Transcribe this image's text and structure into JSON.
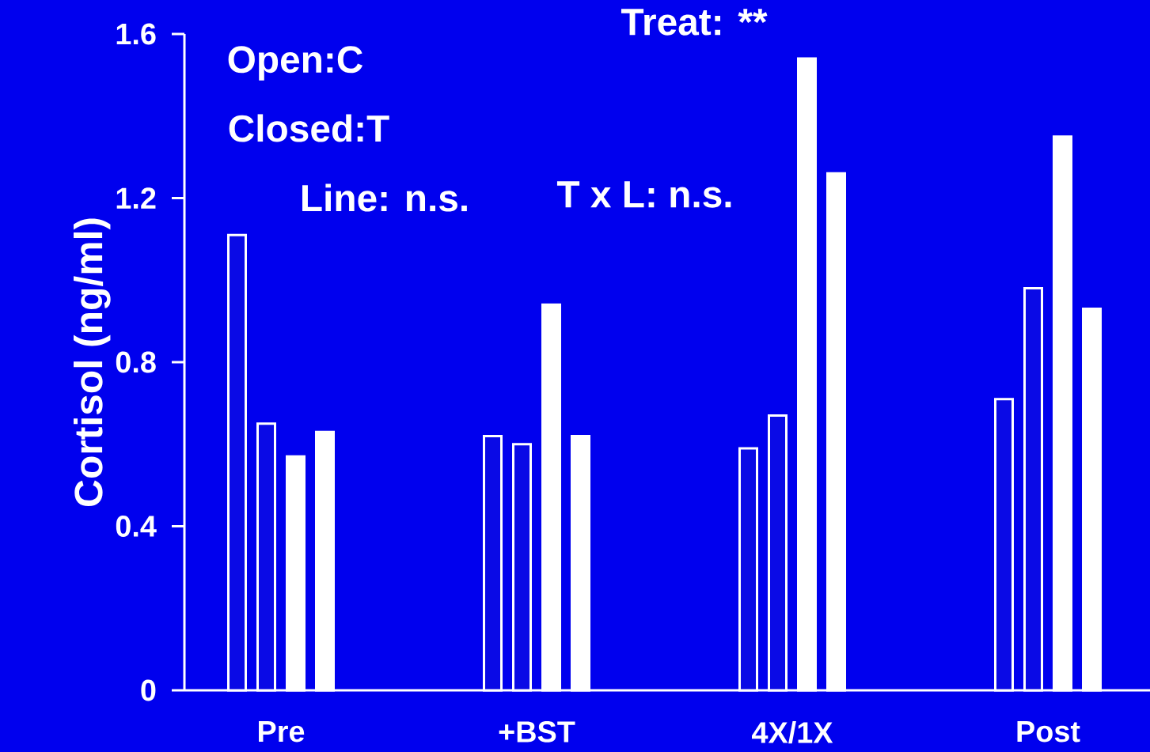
{
  "chart_data": {
    "type": "bar",
    "ylabel": "Cortisol (ng/ml)",
    "categories": [
      "Pre",
      "+BST",
      "4X/1X",
      "Post"
    ],
    "series": [
      {
        "color": "#0a0ae6",
        "values": [
          1.11,
          0.62,
          0.59,
          0.71
        ]
      },
      {
        "color": "#0a0ae6",
        "values": [
          0.65,
          0.6,
          0.67,
          0.98
        ]
      },
      {
        "color": "#ffffff",
        "values": [
          0.57,
          0.94,
          1.54,
          1.35
        ]
      },
      {
        "color": "#ffffff",
        "values": [
          0.63,
          0.62,
          1.26,
          0.93
        ]
      }
    ],
    "ylim": [
      0,
      1.6
    ],
    "yticks": [
      0,
      0.4,
      0.8,
      1.2,
      1.6
    ],
    "annotations": [
      "Treat:    **",
      "Open:C",
      "Closed:T",
      "Line: n.s.",
      "T x L: n.s."
    ]
  }
}
